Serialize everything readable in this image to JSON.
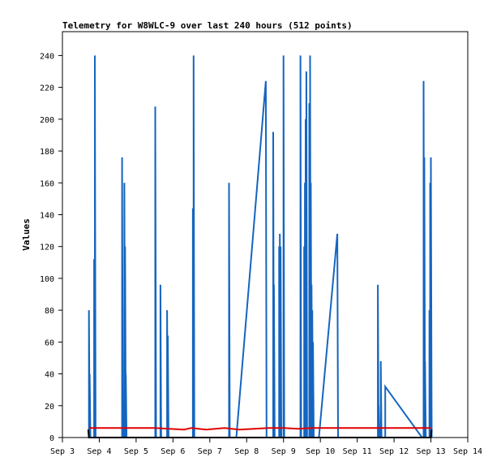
{
  "chart_data": {
    "type": "line",
    "title": "Telemetry for W8WLC-9 over last 240 hours (512 points)",
    "ylabel": "Values",
    "xlabel": "",
    "x_ticks": [
      "Sep 3",
      "Sep 4",
      "Sep 5",
      "Sep 6",
      "Sep 7",
      "Sep 8",
      "Sep 9",
      "Sep 10",
      "Sep 11",
      "Sep 12",
      "Sep 13",
      "Sep 14"
    ],
    "y_ticks": [
      0,
      20,
      40,
      60,
      80,
      100,
      120,
      140,
      160,
      180,
      200,
      220,
      240
    ],
    "xlim": [
      3.0,
      14.0
    ],
    "ylim": [
      0,
      255
    ],
    "grid": false,
    "series": [
      {
        "color": "#1565c0",
        "points": [
          [
            3.72,
            0
          ],
          [
            3.72,
            80
          ],
          [
            3.74,
            0
          ],
          [
            3.74,
            40
          ],
          [
            3.76,
            0
          ],
          [
            3.86,
            0
          ],
          [
            3.86,
            112
          ],
          [
            3.88,
            0
          ],
          [
            3.88,
            240
          ],
          [
            3.9,
            0
          ],
          [
            4.62,
            0
          ],
          [
            4.62,
            176
          ],
          [
            4.64,
            0
          ],
          [
            4.64,
            20
          ],
          [
            4.66,
            0
          ],
          [
            4.68,
            0
          ],
          [
            4.68,
            160
          ],
          [
            4.7,
            0
          ],
          [
            4.7,
            120
          ],
          [
            4.72,
            0
          ],
          [
            4.72,
            40
          ],
          [
            4.74,
            0
          ],
          [
            5.52,
            0
          ],
          [
            5.52,
            208
          ],
          [
            5.54,
            0
          ],
          [
            5.66,
            0
          ],
          [
            5.66,
            96
          ],
          [
            5.68,
            0
          ],
          [
            5.84,
            0
          ],
          [
            5.84,
            80
          ],
          [
            5.86,
            0
          ],
          [
            5.86,
            64
          ],
          [
            5.88,
            0
          ],
          [
            6.54,
            0
          ],
          [
            6.54,
            144
          ],
          [
            6.56,
            0
          ],
          [
            6.56,
            240
          ],
          [
            6.58,
            0
          ],
          [
            7.52,
            0
          ],
          [
            7.52,
            160
          ],
          [
            7.54,
            0
          ],
          [
            7.72,
            0
          ],
          [
            8.52,
            224
          ],
          [
            8.54,
            0
          ],
          [
            8.72,
            0
          ],
          [
            8.72,
            192
          ],
          [
            8.74,
            0
          ],
          [
            8.74,
            96
          ],
          [
            8.76,
            0
          ],
          [
            8.88,
            0
          ],
          [
            8.88,
            120
          ],
          [
            8.9,
            0
          ],
          [
            8.9,
            128
          ],
          [
            8.92,
            0
          ],
          [
            8.92,
            120
          ],
          [
            8.94,
            0
          ],
          [
            9.0,
            0
          ],
          [
            9.0,
            240
          ],
          [
            9.02,
            0
          ],
          [
            9.46,
            0
          ],
          [
            9.46,
            240
          ],
          [
            9.48,
            0
          ],
          [
            9.56,
            0
          ],
          [
            9.56,
            120
          ],
          [
            9.58,
            0
          ],
          [
            9.58,
            160
          ],
          [
            9.6,
            0
          ],
          [
            9.6,
            200
          ],
          [
            9.62,
            0
          ],
          [
            9.62,
            230
          ],
          [
            9.64,
            0
          ],
          [
            9.7,
            0
          ],
          [
            9.7,
            210
          ],
          [
            9.72,
            0
          ],
          [
            9.72,
            240
          ],
          [
            9.74,
            0
          ],
          [
            9.74,
            160
          ],
          [
            9.76,
            0
          ],
          [
            9.76,
            96
          ],
          [
            9.78,
            0
          ],
          [
            9.78,
            80
          ],
          [
            9.8,
            0
          ],
          [
            9.8,
            60
          ],
          [
            9.82,
            0
          ],
          [
            9.96,
            0
          ],
          [
            10.46,
            128
          ],
          [
            10.48,
            0
          ],
          [
            11.56,
            0
          ],
          [
            11.56,
            96
          ],
          [
            11.58,
            0
          ],
          [
            11.58,
            20
          ],
          [
            11.6,
            0
          ],
          [
            11.64,
            0
          ],
          [
            11.64,
            48
          ],
          [
            11.66,
            0
          ],
          [
            11.76,
            0
          ],
          [
            11.76,
            32
          ],
          [
            12.76,
            0
          ],
          [
            12.8,
            0
          ],
          [
            12.8,
            224
          ],
          [
            12.82,
            0
          ],
          [
            12.82,
            176
          ],
          [
            12.84,
            0
          ],
          [
            12.84,
            48
          ],
          [
            12.86,
            0
          ],
          [
            12.96,
            0
          ],
          [
            12.96,
            80
          ],
          [
            12.98,
            0
          ],
          [
            12.98,
            160
          ],
          [
            13.0,
            0
          ],
          [
            13.0,
            176
          ],
          [
            13.02,
            0
          ]
        ]
      },
      {
        "color": "#e00000",
        "points": [
          [
            3.72,
            6
          ],
          [
            4.5,
            6
          ],
          [
            5.5,
            6
          ],
          [
            5.9,
            5.5
          ],
          [
            6.3,
            5
          ],
          [
            6.5,
            6
          ],
          [
            6.9,
            5
          ],
          [
            7.4,
            6
          ],
          [
            7.8,
            5
          ],
          [
            8.2,
            5.5
          ],
          [
            8.6,
            6
          ],
          [
            9.0,
            6
          ],
          [
            9.4,
            5.5
          ],
          [
            9.8,
            6
          ],
          [
            10.4,
            6
          ],
          [
            11.0,
            6
          ],
          [
            11.6,
            6
          ],
          [
            12.2,
            6
          ],
          [
            12.8,
            6
          ],
          [
            13.0,
            6
          ]
        ]
      },
      {
        "color": "#000000",
        "points": [
          [
            3.7,
            5
          ],
          [
            3.72,
            0
          ],
          [
            13.0,
            0
          ],
          [
            13.02,
            5
          ]
        ]
      }
    ]
  }
}
